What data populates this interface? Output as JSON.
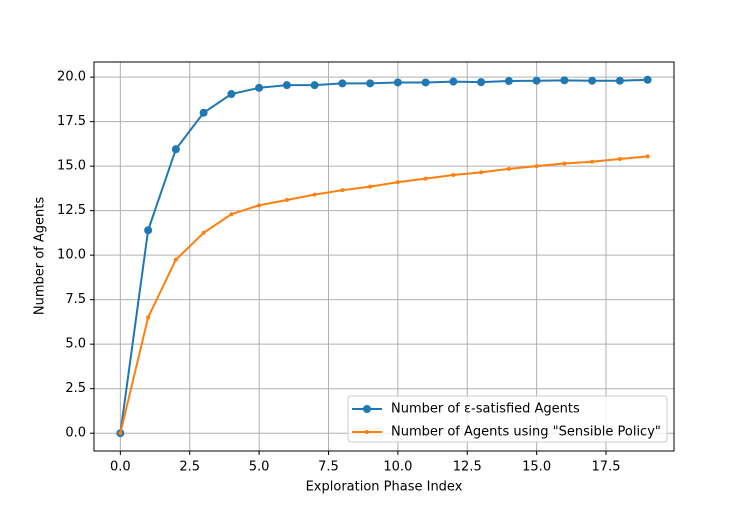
{
  "chart_data": {
    "type": "line",
    "xlabel": "Exploration Phase Index",
    "ylabel": "Number of Agents",
    "x": [
      0,
      1,
      2,
      3,
      4,
      5,
      6,
      7,
      8,
      9,
      10,
      11,
      12,
      13,
      14,
      15,
      16,
      17,
      18,
      19
    ],
    "series": [
      {
        "name": "Number of ε-satisfied Agents",
        "color": "#1f77b4",
        "marker_size": 4,
        "values": [
          0,
          11.4,
          15.95,
          18.0,
          19.05,
          19.4,
          19.55,
          19.55,
          19.65,
          19.65,
          19.7,
          19.7,
          19.75,
          19.72,
          19.78,
          19.8,
          19.82,
          19.8,
          19.8,
          19.85
        ]
      },
      {
        "name": "Number of Agents using \"Sensible Policy\"",
        "color": "#ff7f0e",
        "marker_size": 2,
        "values": [
          0,
          6.5,
          9.75,
          11.25,
          12.3,
          12.8,
          13.1,
          13.4,
          13.65,
          13.85,
          14.1,
          14.3,
          14.5,
          14.65,
          14.85,
          15.0,
          15.15,
          15.25,
          15.4,
          15.55
        ]
      }
    ],
    "xlim": [
      -0.95,
      19.95
    ],
    "xticks": [
      {
        "value": 0,
        "label": "0.0"
      },
      2.5,
      {
        "value": 5,
        "label": "5.0"
      },
      7.5,
      {
        "value": 10,
        "label": "10.0"
      },
      12.5,
      {
        "value": 15,
        "label": "15.0"
      },
      17.5
    ],
    "ylim": [
      -1,
      20.85
    ],
    "yticks": [
      {
        "value": 0,
        "label": "0.0"
      },
      2.5,
      {
        "value": 5,
        "label": "5.0"
      },
      7.5,
      {
        "value": 10,
        "label": "10.0"
      },
      12.5,
      {
        "value": 15,
        "label": "15.0"
      },
      17.5,
      {
        "value": 20,
        "label": "20.0"
      }
    ],
    "grid": true,
    "legend": "lower right"
  }
}
